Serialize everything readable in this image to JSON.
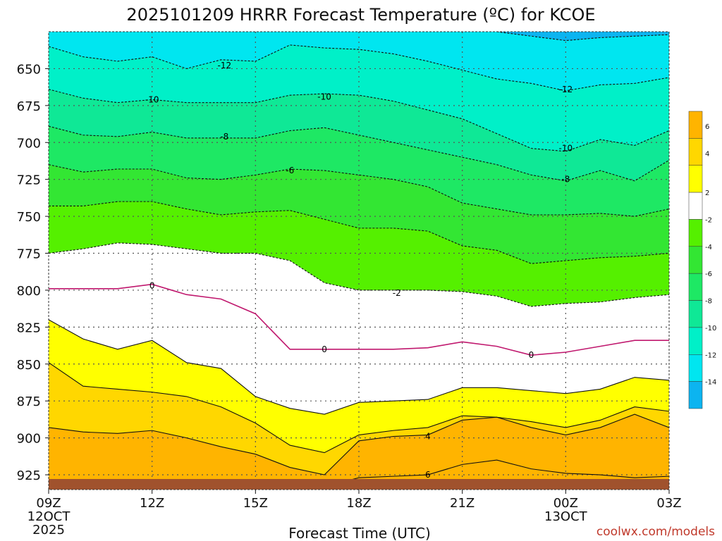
{
  "chart_data": {
    "type": "contour",
    "title": "2025101209 HRRR Forecast Temperature (ºC) for KCOE",
    "xlabel": "Forecast Time (UTC)",
    "ylabel": "",
    "credit": "coolwx.com/models",
    "x_range": [
      0,
      18
    ],
    "y_range": [
      625,
      935
    ],
    "y_ticks": [
      650,
      675,
      700,
      725,
      750,
      775,
      800,
      825,
      850,
      875,
      900,
      925
    ],
    "x_ticks": [
      {
        "x": 0,
        "lines": [
          "09Z",
          "12OCT",
          "2025"
        ]
      },
      {
        "x": 3,
        "lines": [
          "12Z"
        ]
      },
      {
        "x": 6,
        "lines": [
          "15Z"
        ]
      },
      {
        "x": 9,
        "lines": [
          "18Z"
        ]
      },
      {
        "x": 12,
        "lines": [
          "21Z"
        ]
      },
      {
        "x": 15,
        "lines": [
          "00Z",
          "13OCT"
        ]
      },
      {
        "x": 18,
        "lines": [
          "03Z"
        ]
      }
    ],
    "ground_level_hpa": 928,
    "isotherms": [
      {
        "temp": 6,
        "hours": [
          0,
          1,
          2,
          3,
          4,
          5,
          6,
          7,
          8,
          9,
          10,
          11,
          12,
          13,
          14,
          15,
          16,
          17,
          18
        ],
        "pressure": [
          934,
          934,
          934,
          934,
          934,
          934,
          934,
          934,
          933,
          927,
          926,
          925,
          918,
          915,
          921,
          924,
          925,
          927,
          926
        ]
      },
      {
        "temp": 4,
        "hours": [
          0,
          1,
          2,
          3,
          4,
          5,
          6,
          7,
          8,
          9,
          10,
          11,
          12,
          13,
          14,
          15,
          16,
          17,
          18
        ],
        "pressure": [
          893,
          896,
          897,
          895,
          900,
          906,
          911,
          920,
          925,
          902,
          899,
          898,
          888,
          886,
          893,
          898,
          893,
          884,
          893
        ]
      },
      {
        "temp": 2,
        "hours": [
          0,
          1,
          2,
          3,
          4,
          5,
          6,
          7,
          8,
          9,
          10,
          11,
          12,
          13,
          14,
          15,
          16,
          17,
          18
        ],
        "pressure": [
          849,
          865,
          867,
          869,
          872,
          879,
          890,
          905,
          910,
          898,
          895,
          893,
          885,
          886,
          889,
          893,
          888,
          879,
          882
        ]
      },
      {
        "temp": 2,
        "hours": [
          0,
          1,
          2,
          3,
          4,
          5,
          6,
          7,
          8,
          9,
          10,
          11,
          12,
          13,
          14,
          15,
          16,
          17,
          18
        ],
        "pressure": [
          820,
          833,
          840,
          834,
          849,
          853,
          872,
          880,
          884,
          876,
          875,
          874,
          866,
          866,
          868,
          870,
          867,
          859,
          861
        ]
      },
      {
        "temp": 0,
        "hours": [
          0,
          1,
          2,
          3,
          4,
          5,
          6,
          7,
          8,
          9,
          10,
          11,
          12,
          13,
          14,
          15,
          16,
          17,
          18
        ],
        "pressure": [
          799,
          799,
          799,
          796,
          803,
          806,
          816,
          840,
          840,
          840,
          840,
          839,
          835,
          838,
          844,
          842,
          838,
          834,
          834
        ]
      },
      {
        "temp": -2,
        "hours": [
          0,
          1,
          2,
          3,
          4,
          5,
          6,
          7,
          8,
          9,
          10,
          11,
          12,
          13,
          14,
          15,
          16,
          17,
          18
        ],
        "pressure": [
          775,
          772,
          768,
          769,
          772,
          775,
          775,
          780,
          795,
          800,
          800,
          800,
          801,
          804,
          811,
          809,
          808,
          805,
          803
        ]
      },
      {
        "temp": -4,
        "hours": [
          0,
          1,
          2,
          3,
          4,
          5,
          6,
          7,
          8,
          9,
          10,
          11,
          12,
          13,
          14,
          15,
          16,
          17,
          18
        ],
        "pressure": [
          743,
          743,
          740,
          740,
          745,
          749,
          747,
          746,
          752,
          758,
          758,
          760,
          770,
          773,
          782,
          780,
          778,
          777,
          775
        ]
      },
      {
        "temp": -6,
        "hours": [
          0,
          1,
          2,
          3,
          4,
          5,
          6,
          7,
          8,
          9,
          10,
          11,
          12,
          13,
          14,
          15,
          16,
          17,
          18
        ],
        "pressure": [
          715,
          720,
          718,
          718,
          724,
          725,
          722,
          718,
          719,
          722,
          725,
          730,
          741,
          745,
          749,
          749,
          748,
          750,
          745
        ]
      },
      {
        "temp": -8,
        "hours": [
          0,
          1,
          2,
          3,
          4,
          5,
          6,
          7,
          8,
          9,
          10,
          11,
          12,
          13,
          14,
          15,
          16,
          17,
          18
        ],
        "pressure": [
          689,
          695,
          696,
          693,
          697,
          697,
          697,
          692,
          690,
          695,
          700,
          705,
          710,
          715,
          722,
          726,
          719,
          726,
          712
        ]
      },
      {
        "temp": -10,
        "hours": [
          0,
          1,
          2,
          3,
          4,
          5,
          6,
          7,
          8,
          9,
          10,
          11,
          12,
          13,
          14,
          15,
          16,
          17,
          18
        ],
        "pressure": [
          664,
          670,
          673,
          671,
          673,
          673,
          673,
          668,
          667,
          668,
          672,
          678,
          684,
          694,
          704,
          706,
          698,
          702,
          692
        ]
      },
      {
        "temp": -12,
        "hours": [
          0,
          1,
          2,
          3,
          4,
          5,
          6,
          7,
          8,
          9,
          10,
          11,
          12,
          13,
          14,
          15,
          16,
          17,
          18
        ],
        "pressure": [
          635,
          642,
          645,
          642,
          650,
          644,
          645,
          634,
          636,
          637,
          640,
          645,
          651,
          657,
          660,
          665,
          661,
          660,
          656
        ]
      },
      {
        "temp": -14,
        "hours": [
          13,
          14,
          15,
          16,
          17,
          18
        ],
        "pressure": [
          625,
          628,
          631,
          629,
          628,
          627
        ]
      }
    ],
    "contour_labels": [
      {
        "text": "-12",
        "x": 5.1,
        "p": 648
      },
      {
        "text": "-10",
        "x": 3.0,
        "p": 671
      },
      {
        "text": "-10",
        "x": 8.0,
        "p": 669
      },
      {
        "text": "-12",
        "x": 15.0,
        "p": 664
      },
      {
        "text": "-8",
        "x": 5.1,
        "p": 696
      },
      {
        "text": "-10",
        "x": 15.0,
        "p": 704
      },
      {
        "text": "-6",
        "x": 7.0,
        "p": 719
      },
      {
        "text": "-8",
        "x": 15.0,
        "p": 725
      },
      {
        "text": "0",
        "x": 3.0,
        "p": 797
      },
      {
        "text": "-2",
        "x": 10.1,
        "p": 802
      },
      {
        "text": "0",
        "x": 8.0,
        "p": 840
      },
      {
        "text": "0",
        "x": 14.0,
        "p": 844
      },
      {
        "text": "4",
        "x": 11.0,
        "p": 899
      },
      {
        "text": "6",
        "x": 11.0,
        "p": 925
      }
    ],
    "colorbar": {
      "labels": [
        "6",
        "4",
        "2",
        "-2",
        "-4",
        "-6",
        "-8",
        "-10",
        "-12",
        "-14"
      ],
      "bins": [
        {
          "lo": 6,
          "hi": 8,
          "color": "#ffb400"
        },
        {
          "lo": 4,
          "hi": 6,
          "color": "#ffd700"
        },
        {
          "lo": 2,
          "hi": 4,
          "color": "#ffff00"
        },
        {
          "lo": -2,
          "hi": 2,
          "color": "#ffffff"
        },
        {
          "lo": -4,
          "hi": -2,
          "color": "#55f000"
        },
        {
          "lo": -6,
          "hi": -4,
          "color": "#33e633"
        },
        {
          "lo": -8,
          "hi": -6,
          "color": "#1ee864"
        },
        {
          "lo": -10,
          "hi": -8,
          "color": "#0fe896"
        },
        {
          "lo": -12,
          "hi": -10,
          "color": "#00f0c8"
        },
        {
          "lo": -14,
          "hi": -12,
          "color": "#00e6f0"
        },
        {
          "lo": -16,
          "hi": -14,
          "color": "#0cb4f0"
        }
      ]
    },
    "colors": {
      "ground": "#a0522d",
      "zero_line": "#c0186e",
      "warm_band_6": "#ffb400",
      "warm_band_4": "#ffd700",
      "warm_band_2": "#ffff00",
      "credit": "#c0392b"
    }
  }
}
